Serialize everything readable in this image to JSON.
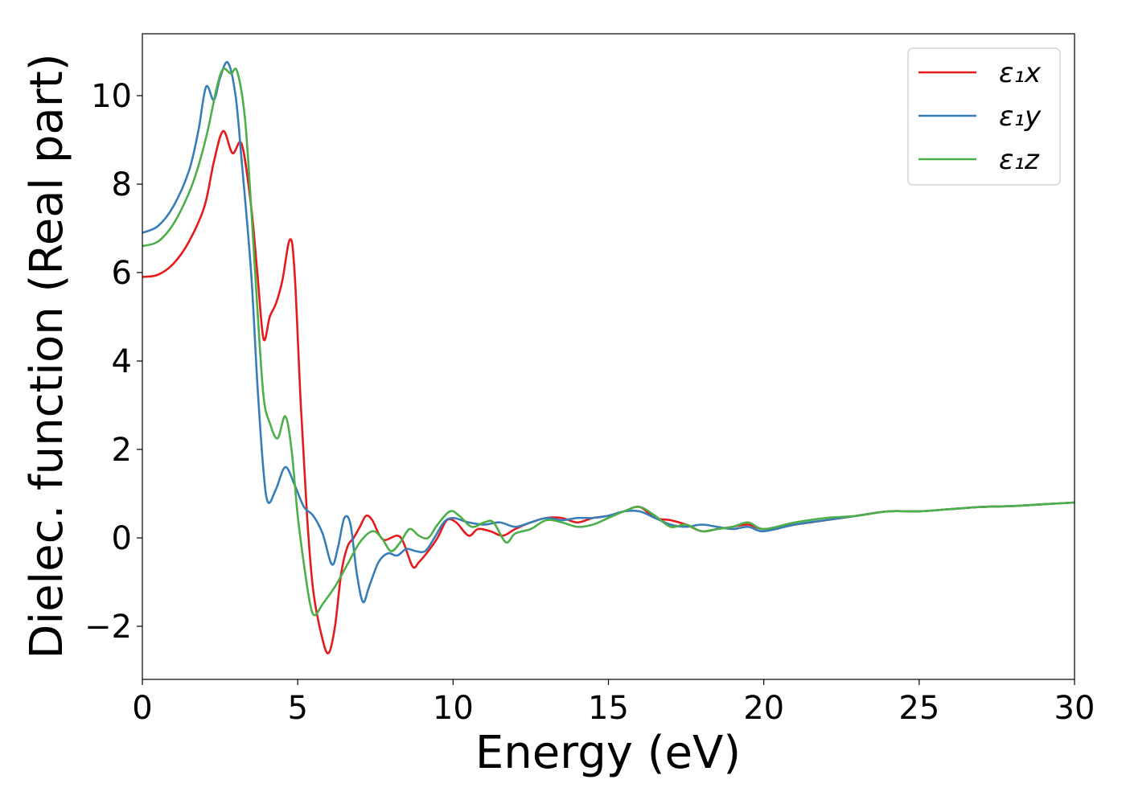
{
  "chart_data": {
    "type": "line",
    "xlabel": "Energy (eV)",
    "ylabel": "Dielec. function (Real part)",
    "xlim": [
      0,
      30
    ],
    "ylim": [
      -3.2,
      11.4
    ],
    "xticks": [
      0,
      5,
      10,
      15,
      20,
      25,
      30
    ],
    "xtick_labels": [
      "0",
      "5",
      "10",
      "15",
      "20",
      "25",
      "30"
    ],
    "yticks": [
      -2,
      0,
      2,
      4,
      6,
      8,
      10
    ],
    "ytick_labels": [
      "−2",
      "0",
      "2",
      "4",
      "6",
      "8",
      "10"
    ],
    "grid": false,
    "legend_position": "top-right",
    "series": [
      {
        "name": "ε₁x",
        "color": "#e41a1c",
        "points": [
          [
            0,
            5.9
          ],
          [
            0.5,
            5.95
          ],
          [
            1,
            6.2
          ],
          [
            1.5,
            6.7
          ],
          [
            2,
            7.5
          ],
          [
            2.3,
            8.5
          ],
          [
            2.6,
            9.2
          ],
          [
            2.9,
            8.7
          ],
          [
            3.2,
            8.9
          ],
          [
            3.5,
            7.5
          ],
          [
            3.7,
            6
          ],
          [
            3.9,
            4.5
          ],
          [
            4.1,
            5
          ],
          [
            4.3,
            5.3
          ],
          [
            4.5,
            5.8
          ],
          [
            4.75,
            6.75
          ],
          [
            4.9,
            6
          ],
          [
            5.1,
            3
          ],
          [
            5.3,
            0.5
          ],
          [
            5.5,
            -1.2
          ],
          [
            5.8,
            -2.3
          ],
          [
            6,
            -2.6
          ],
          [
            6.2,
            -2
          ],
          [
            6.4,
            -0.8
          ],
          [
            6.6,
            -0.2
          ],
          [
            6.8,
            0
          ],
          [
            7,
            0.25
          ],
          [
            7.2,
            0.5
          ],
          [
            7.4,
            0.4
          ],
          [
            7.6,
            0.1
          ],
          [
            7.8,
            -0.05
          ],
          [
            8.2,
            0.05
          ],
          [
            8.4,
            -0.1
          ],
          [
            8.7,
            -0.65
          ],
          [
            8.9,
            -0.55
          ],
          [
            9.2,
            -0.3
          ],
          [
            9.5,
            0
          ],
          [
            9.8,
            0.4
          ],
          [
            10.1,
            0.35
          ],
          [
            10.5,
            0.05
          ],
          [
            10.8,
            0.2
          ],
          [
            11.2,
            0.15
          ],
          [
            11.6,
            0.05
          ],
          [
            12,
            0.2
          ],
          [
            12.5,
            0.35
          ],
          [
            13,
            0.45
          ],
          [
            13.5,
            0.45
          ],
          [
            14,
            0.35
          ],
          [
            14.5,
            0.45
          ],
          [
            15,
            0.5
          ],
          [
            15.5,
            0.6
          ],
          [
            16,
            0.7
          ],
          [
            16.5,
            0.45
          ],
          [
            17,
            0.4
          ],
          [
            17.5,
            0.3
          ],
          [
            18,
            0.15
          ],
          [
            18.5,
            0.2
          ],
          [
            19,
            0.25
          ],
          [
            19.5,
            0.3
          ],
          [
            20,
            0.2
          ],
          [
            21,
            0.3
          ],
          [
            22,
            0.4
          ],
          [
            23,
            0.5
          ],
          [
            24,
            0.6
          ],
          [
            25,
            0.6
          ],
          [
            26,
            0.65
          ],
          [
            27,
            0.7
          ],
          [
            28,
            0.72
          ],
          [
            29,
            0.76
          ],
          [
            30,
            0.8
          ]
        ]
      },
      {
        "name": "ε₁y",
        "color": "#377eb8",
        "points": [
          [
            0,
            6.9
          ],
          [
            0.5,
            7.05
          ],
          [
            1,
            7.5
          ],
          [
            1.5,
            8.3
          ],
          [
            1.8,
            9.2
          ],
          [
            2.05,
            10.2
          ],
          [
            2.3,
            9.9
          ],
          [
            2.5,
            10.4
          ],
          [
            2.75,
            10.75
          ],
          [
            3,
            10
          ],
          [
            3.2,
            8.5
          ],
          [
            3.5,
            6
          ],
          [
            3.7,
            3.5
          ],
          [
            3.9,
            1.5
          ],
          [
            4.05,
            0.8
          ],
          [
            4.3,
            1.1
          ],
          [
            4.6,
            1.6
          ],
          [
            4.9,
            1.2
          ],
          [
            5.2,
            0.7
          ],
          [
            5.5,
            0.5
          ],
          [
            5.8,
            0.1
          ],
          [
            6.1,
            -0.6
          ],
          [
            6.3,
            -0.2
          ],
          [
            6.5,
            0.45
          ],
          [
            6.7,
            0.3
          ],
          [
            6.9,
            -0.8
          ],
          [
            7.1,
            -1.45
          ],
          [
            7.3,
            -1.1
          ],
          [
            7.6,
            -0.55
          ],
          [
            7.9,
            -0.35
          ],
          [
            8.2,
            -0.4
          ],
          [
            8.5,
            -0.25
          ],
          [
            8.8,
            -0.3
          ],
          [
            9.1,
            -0.3
          ],
          [
            9.4,
            0
          ],
          [
            9.7,
            0.35
          ],
          [
            10,
            0.45
          ],
          [
            10.5,
            0.35
          ],
          [
            11,
            0.3
          ],
          [
            11.5,
            0.35
          ],
          [
            12,
            0.25
          ],
          [
            12.5,
            0.35
          ],
          [
            13,
            0.45
          ],
          [
            13.5,
            0.4
          ],
          [
            14,
            0.45
          ],
          [
            14.5,
            0.45
          ],
          [
            15,
            0.5
          ],
          [
            15.5,
            0.6
          ],
          [
            16,
            0.6
          ],
          [
            16.5,
            0.45
          ],
          [
            17,
            0.3
          ],
          [
            17.5,
            0.25
          ],
          [
            18,
            0.3
          ],
          [
            18.5,
            0.25
          ],
          [
            19,
            0.2
          ],
          [
            19.5,
            0.25
          ],
          [
            20,
            0.15
          ],
          [
            21,
            0.3
          ],
          [
            22,
            0.4
          ],
          [
            23,
            0.5
          ],
          [
            24,
            0.6
          ],
          [
            25,
            0.6
          ],
          [
            26,
            0.65
          ],
          [
            27,
            0.7
          ],
          [
            28,
            0.72
          ],
          [
            29,
            0.76
          ],
          [
            30,
            0.8
          ]
        ]
      },
      {
        "name": "ε₁z",
        "color": "#4daf4a",
        "points": [
          [
            0,
            6.6
          ],
          [
            0.5,
            6.7
          ],
          [
            1,
            7.1
          ],
          [
            1.5,
            7.8
          ],
          [
            1.8,
            8.4
          ],
          [
            2.1,
            9.2
          ],
          [
            2.4,
            10.2
          ],
          [
            2.6,
            10.6
          ],
          [
            2.85,
            10.5
          ],
          [
            3.05,
            10.55
          ],
          [
            3.3,
            9.5
          ],
          [
            3.5,
            7.5
          ],
          [
            3.7,
            5.2
          ],
          [
            3.9,
            3.2
          ],
          [
            4.1,
            2.6
          ],
          [
            4.35,
            2.25
          ],
          [
            4.6,
            2.75
          ],
          [
            4.8,
            2
          ],
          [
            5,
            0.5
          ],
          [
            5.2,
            -0.6
          ],
          [
            5.4,
            -1.5
          ],
          [
            5.55,
            -1.75
          ],
          [
            5.8,
            -1.5
          ],
          [
            6.2,
            -1.1
          ],
          [
            6.6,
            -0.6
          ],
          [
            7,
            -0.1
          ],
          [
            7.4,
            0.15
          ],
          [
            7.7,
            0
          ],
          [
            8,
            -0.3
          ],
          [
            8.3,
            -0.1
          ],
          [
            8.6,
            0.2
          ],
          [
            8.9,
            0.05
          ],
          [
            9.2,
            0
          ],
          [
            9.5,
            0.3
          ],
          [
            9.9,
            0.6
          ],
          [
            10.2,
            0.5
          ],
          [
            10.6,
            0.25
          ],
          [
            11,
            0.35
          ],
          [
            11.3,
            0.35
          ],
          [
            11.7,
            -0.1
          ],
          [
            12,
            0.1
          ],
          [
            12.5,
            0.2
          ],
          [
            13,
            0.4
          ],
          [
            13.5,
            0.35
          ],
          [
            14,
            0.25
          ],
          [
            14.5,
            0.3
          ],
          [
            15,
            0.45
          ],
          [
            15.5,
            0.6
          ],
          [
            16,
            0.7
          ],
          [
            16.5,
            0.5
          ],
          [
            17,
            0.25
          ],
          [
            17.5,
            0.3
          ],
          [
            18,
            0.15
          ],
          [
            18.5,
            0.2
          ],
          [
            19,
            0.25
          ],
          [
            19.5,
            0.35
          ],
          [
            20,
            0.2
          ],
          [
            21,
            0.35
          ],
          [
            22,
            0.45
          ],
          [
            23,
            0.5
          ],
          [
            24,
            0.6
          ],
          [
            25,
            0.6
          ],
          [
            26,
            0.65
          ],
          [
            27,
            0.7
          ],
          [
            28,
            0.72
          ],
          [
            29,
            0.76
          ],
          [
            30,
            0.8
          ]
        ]
      }
    ]
  }
}
